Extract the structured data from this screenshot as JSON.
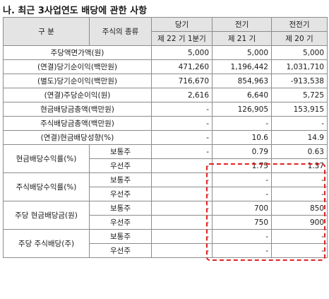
{
  "title": "나. 최근 3사업연도 배당에 관한 사항",
  "header": {
    "gubun": "구    분",
    "stock_type": "주식의 종류",
    "periods": [
      "당기",
      "전기",
      "전전기"
    ],
    "sub_periods": [
      "제 22 기 1분기",
      "제 21 기",
      "제 20 기"
    ]
  },
  "rows": [
    {
      "label": "주당액면가액(원)",
      "values": [
        "5,000",
        "5,000",
        "5,000"
      ]
    },
    {
      "label": "(연결)당기순이익(백만원)",
      "values": [
        "471,260",
        "1,196,442",
        "1,031,710"
      ]
    },
    {
      "label": "(별도)당기순이익(백만원)",
      "values": [
        "716,670",
        "854,963",
        "-913,538"
      ]
    },
    {
      "label": "(연결)주당순이익(원)",
      "values": [
        "2,616",
        "6,640",
        "5,725"
      ]
    },
    {
      "label": "현금배당금총액(백만원)",
      "values": [
        "-",
        "126,905",
        "153,915"
      ]
    },
    {
      "label": "주식배당금총액(백만원)",
      "values": [
        "-",
        "-",
        "-"
      ]
    },
    {
      "label": "(연결)현금배당성향(%)",
      "values": [
        "-",
        "10.6",
        "14.9"
      ]
    }
  ],
  "groups": [
    {
      "label": "현금배당수익률(%)",
      "sub": [
        {
          "type": "보통주",
          "values": [
            "-",
            "0.79",
            "0.63"
          ]
        },
        {
          "type": "우선주",
          "values": [
            "-",
            "1.75",
            "1.37"
          ]
        }
      ]
    },
    {
      "label": "주식배당수익률(%)",
      "sub": [
        {
          "type": "보통주",
          "values": [
            "-",
            "-",
            "-"
          ]
        },
        {
          "type": "우선주",
          "values": [
            "-",
            "-",
            "-"
          ]
        }
      ]
    },
    {
      "label": "주당 현금배당금(원)",
      "sub": [
        {
          "type": "보통주",
          "values": [
            "-",
            "700",
            "850"
          ]
        },
        {
          "type": "우선주",
          "values": [
            "-",
            "750",
            "900"
          ]
        }
      ]
    },
    {
      "label": "주당 주식배당(주)",
      "sub": [
        {
          "type": "보통주",
          "values": [
            "-",
            "-",
            "-"
          ]
        },
        {
          "type": "우선주",
          "values": [
            "-",
            "-",
            "-"
          ]
        }
      ]
    }
  ],
  "colors": {
    "header_bg": "#e4e4e4",
    "border": "#8c8c8c",
    "highlight": "#e32020"
  }
}
